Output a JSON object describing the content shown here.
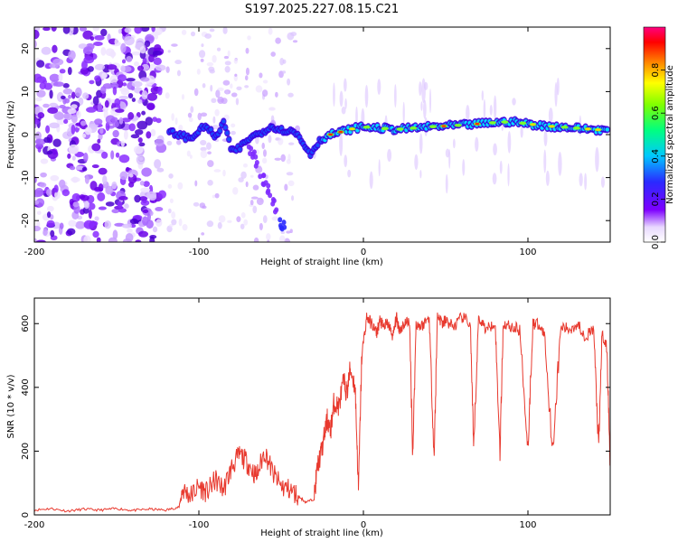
{
  "chart_data": [
    {
      "type": "heatmap",
      "title": "S197.2025.227.08.15.C21",
      "xlabel": "Height of straight line (km)",
      "ylabel": "Frequency (Hz)",
      "xlim": [
        -200,
        150
      ],
      "ylim": [
        -25,
        25
      ],
      "xticks": [
        -200,
        -100,
        0,
        100
      ],
      "xtick_labels": [
        "-200",
        "-100",
        "0",
        "100"
      ],
      "yticks": [
        -20,
        -10,
        0,
        10,
        20
      ],
      "ytick_labels": [
        "-20",
        "-10",
        "0",
        "10",
        "20"
      ],
      "ridge": {
        "x": [
          -118,
          -112,
          -105,
          -100,
          -95,
          -90,
          -85,
          -80,
          -75,
          -70,
          -65,
          -60,
          -55,
          -50,
          -45,
          -40,
          -35,
          -32,
          -28,
          -25,
          -20,
          -15,
          -10,
          -5,
          0,
          10,
          20,
          30,
          40,
          50,
          60,
          70,
          80,
          90,
          100,
          110,
          120,
          130,
          140,
          148
        ],
        "y": [
          0.5,
          0,
          -1,
          1,
          2,
          -1,
          3,
          -4,
          -3,
          -1,
          0,
          1,
          2,
          1,
          1,
          0,
          -3,
          -4.5,
          -2,
          -1,
          0,
          0.5,
          1,
          1.5,
          1.8,
          1.5,
          1.2,
          1.5,
          1.8,
          2,
          2.2,
          2.5,
          2.8,
          3,
          2.5,
          2,
          1.8,
          1.5,
          1.2,
          1
        ]
      },
      "colorbar": {
        "label": "Normalized spectral amplitude",
        "range": [
          0,
          1
        ],
        "ticks": [
          0.0,
          0.2,
          0.4,
          0.6,
          0.8
        ],
        "tick_labels": [
          "0.0",
          "0.2",
          "0.4",
          "0.6",
          "0.8"
        ],
        "colors": [
          "#ffffff",
          "#7e00ff",
          "#2a2aff",
          "#00c8ff",
          "#00ff80",
          "#80ff00",
          "#ffff00",
          "#ff8000",
          "#ff0000",
          "#ff0080"
        ]
      }
    },
    {
      "type": "line",
      "xlabel": "Height of straight line (km)",
      "ylabel": "SNR (10 * v/v)",
      "xlim": [
        -200,
        150
      ],
      "ylim": [
        0,
        680
      ],
      "xticks": [
        -200,
        -100,
        0,
        100
      ],
      "xtick_labels": [
        "-200",
        "-100",
        "0",
        "100"
      ],
      "yticks": [
        0,
        200,
        400,
        600
      ],
      "ytick_labels": [
        "0",
        "200",
        "400",
        "600"
      ],
      "color": "#e8392e",
      "series": [
        {
          "name": "SNR",
          "x": [
            -200,
            -190,
            -180,
            -170,
            -160,
            -150,
            -140,
            -130,
            -120,
            -112,
            -110,
            -105,
            -100,
            -95,
            -90,
            -85,
            -80,
            -75,
            -70,
            -65,
            -60,
            -55,
            -50,
            -45,
            -40,
            -35,
            -30,
            -28,
            -25,
            -22,
            -20,
            -18,
            -15,
            -12,
            -10,
            -8,
            -5,
            -3,
            -1,
            2,
            5,
            8,
            10,
            12,
            15,
            18,
            20,
            22,
            25,
            28,
            30,
            32,
            35,
            40,
            43,
            45,
            48,
            50,
            55,
            60,
            65,
            67,
            70,
            75,
            80,
            83,
            85,
            90,
            95,
            100,
            103,
            105,
            110,
            115,
            120,
            125,
            130,
            135,
            140,
            143,
            145,
            148,
            150
          ],
          "y": [
            15,
            20,
            12,
            18,
            15,
            20,
            14,
            18,
            15,
            25,
            80,
            60,
            90,
            70,
            110,
            80,
            150,
            190,
            160,
            120,
            200,
            130,
            90,
            80,
            60,
            40,
            50,
            150,
            210,
            300,
            260,
            350,
            340,
            420,
            380,
            460,
            400,
            80,
            500,
            620,
            600,
            570,
            610,
            590,
            600,
            560,
            620,
            580,
            600,
            610,
            190,
            600,
            590,
            620,
            180,
            630,
            600,
            610,
            590,
            620,
            600,
            200,
            620,
            580,
            610,
            200,
            600,
            590,
            580,
            210,
            600,
            600,
            570,
            200,
            590,
            580,
            600,
            560,
            580,
            200,
            570,
            520,
            160
          ]
        }
      ]
    }
  ]
}
